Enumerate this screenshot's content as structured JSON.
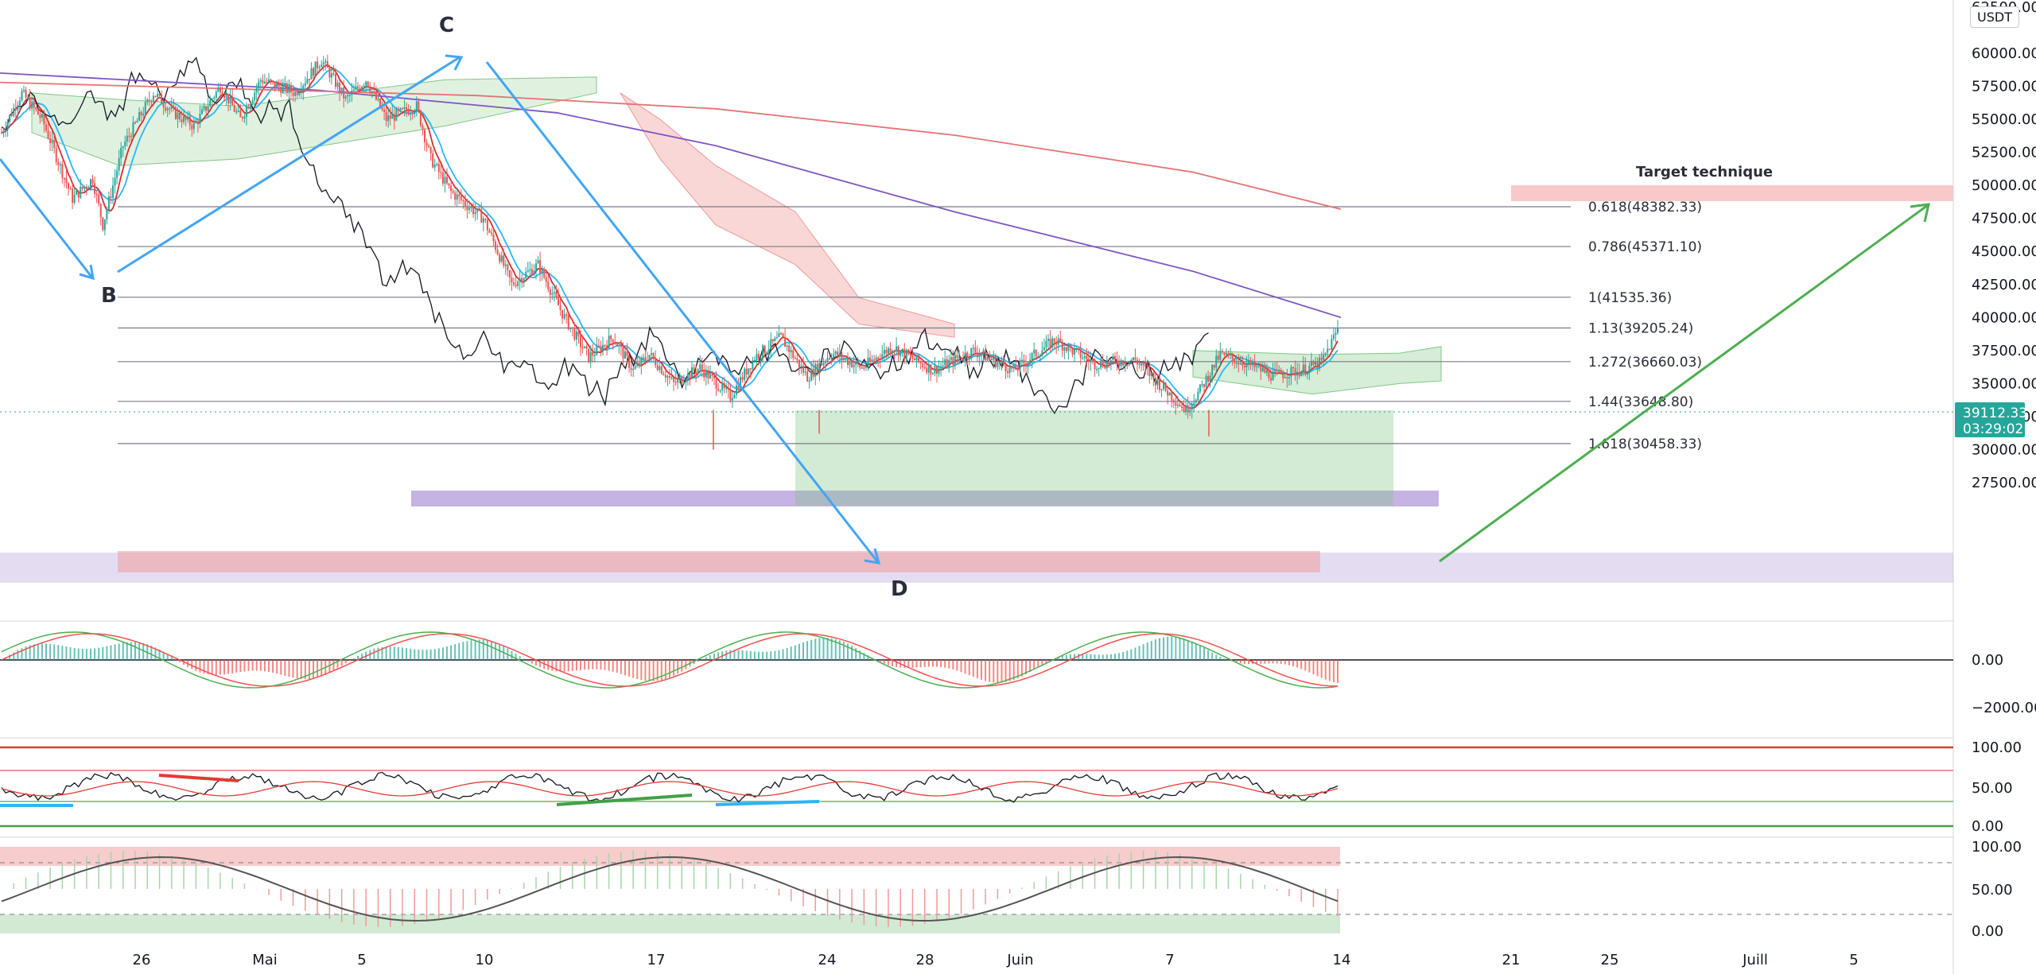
{
  "chart_data": {
    "type": "candlestick",
    "currency_badge": "USDT",
    "price_axis": {
      "ylim": [
        26500,
        63000
      ],
      "ticks": [
        "60000.00",
        "57500.00",
        "55000.00",
        "52500.00",
        "50000.00",
        "47500.00",
        "45000.00",
        "42500.00",
        "40000.00",
        "37500.00",
        "35000.00",
        "32500.00",
        "30000.00",
        "27500.00"
      ],
      "top_tick": "62500.00",
      "last_price": "39112.33",
      "countdown": "03:29:02"
    },
    "time_axis": {
      "labels": [
        "26",
        "Mai",
        "5",
        "10",
        "17",
        "24",
        "28",
        "Juin",
        "7",
        "14",
        "21",
        "25",
        "Juill",
        "5"
      ]
    },
    "fib_levels": [
      {
        "label": "0.618(48382.33)",
        "value": 48382.33
      },
      {
        "label": "0.786(45371.10)",
        "value": 45371.1
      },
      {
        "label": "1(41535.36)",
        "value": 41535.36
      },
      {
        "label": "1.13(39205.24)",
        "value": 39205.24
      },
      {
        "label": "1.272(36660.03)",
        "value": 36660.03
      },
      {
        "label": "1.44(33648.80)",
        "value": 33648.8
      },
      {
        "label": "1.618(30458.33)",
        "value": 30458.33
      }
    ],
    "wave_labels": [
      "B",
      "C",
      "D"
    ],
    "target_label": "Target technique",
    "target_zone": [
      51600,
      52500
    ],
    "macd_axis": {
      "ticks": [
        "0.00",
        "−2000.00"
      ]
    },
    "rsi_axis": {
      "ticks": [
        "100.00",
        "50.00",
        "0.00"
      ]
    },
    "stoch_axis": {
      "ticks": [
        "100.00",
        "50.00",
        "0.00"
      ]
    },
    "price_path": [
      [
        0,
        54000
      ],
      [
        10,
        57000
      ],
      [
        20,
        55000
      ],
      [
        35,
        49000
      ],
      [
        45,
        50500
      ],
      [
        50,
        47000
      ],
      [
        60,
        53000
      ],
      [
        75,
        57000
      ],
      [
        85,
        55500
      ],
      [
        95,
        54500
      ],
      [
        108,
        57500
      ],
      [
        118,
        55000
      ],
      [
        128,
        58000
      ],
      [
        145,
        57000
      ],
      [
        158,
        59500
      ],
      [
        170,
        56500
      ],
      [
        180,
        58000
      ],
      [
        190,
        55000
      ],
      [
        205,
        56000
      ],
      [
        212,
        52000
      ],
      [
        222,
        49500
      ],
      [
        238,
        47500
      ],
      [
        252,
        42500
      ],
      [
        265,
        44000
      ],
      [
        278,
        40000
      ],
      [
        290,
        37000
      ],
      [
        302,
        38500
      ],
      [
        312,
        36000
      ],
      [
        320,
        37200
      ],
      [
        332,
        35000
      ],
      [
        345,
        36200
      ],
      [
        360,
        34000
      ],
      [
        372,
        37000
      ],
      [
        385,
        38500
      ],
      [
        398,
        35500
      ],
      [
        410,
        37300
      ],
      [
        425,
        36200
      ],
      [
        440,
        37800
      ],
      [
        460,
        36000
      ],
      [
        480,
        37500
      ],
      [
        500,
        36000
      ],
      [
        520,
        38300
      ],
      [
        540,
        36500
      ],
      [
        560,
        36800
      ],
      [
        575,
        34500
      ],
      [
        585,
        33000
      ],
      [
        592,
        34500
      ],
      [
        602,
        37200
      ],
      [
        615,
        36500
      ],
      [
        628,
        35600
      ],
      [
        642,
        36000
      ],
      [
        652,
        36600
      ],
      [
        660,
        39100
      ]
    ]
  }
}
